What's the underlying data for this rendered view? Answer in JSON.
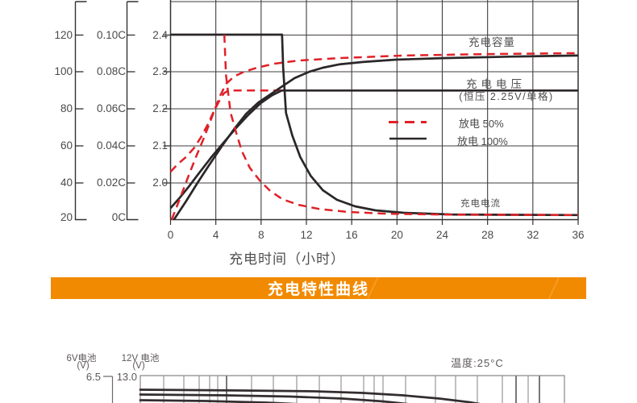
{
  "banner": {
    "title": "充电特性曲线",
    "bg": "#f18a00"
  },
  "chart_data": [
    {
      "type": "line",
      "title": "",
      "xlabel": "充电时间（小时）",
      "x_axis": {
        "range": [
          0,
          36
        ],
        "ticks": [
          "0",
          "4",
          "8",
          "12",
          "16",
          "20",
          "24",
          "28",
          "32",
          "36"
        ]
      },
      "y_axes": [
        {
          "id": "capacity",
          "unit": "%",
          "range": [
            20,
            120
          ],
          "ticks": [
            "120",
            "100",
            "80",
            "60",
            "40",
            "20"
          ]
        },
        {
          "id": "current",
          "unit": "C",
          "range": [
            0,
            0.1
          ],
          "ticks": [
            "0.10C",
            "0.08C",
            "0.06C",
            "0.04C",
            "0.02C",
            "0C"
          ]
        },
        {
          "id": "voltage",
          "unit": "V",
          "range": [
            2.0,
            2.4
          ],
          "ticks": [
            "2.4",
            "2.3",
            "2.2",
            "2.1",
            "2.0"
          ]
        }
      ],
      "annotations": {
        "capacity": "充电容量",
        "voltage": "充电电压",
        "voltage_sub": "(恒压 2.25V/单格)",
        "current": "充电电流"
      },
      "legend": [
        {
          "label": "放电 50%",
          "style": "dashed",
          "color": "#e02128"
        },
        {
          "label": "放电 100%",
          "style": "solid",
          "color": "#2b2728"
        }
      ],
      "series": [
        {
          "id": "voltage-50",
          "name": "充电电压(放电50%)",
          "axis": "voltage",
          "color": "#e02128",
          "style": "dashed",
          "points": [
            [
              0,
              2.03
            ],
            [
              0.6,
              2.05
            ],
            [
              1.35,
              2.07
            ],
            [
              2.06,
              2.094
            ],
            [
              2.7,
              2.124
            ],
            [
              3.27,
              2.157
            ],
            [
              3.77,
              2.19
            ],
            [
              4.27,
              2.22
            ],
            [
              4.7,
              2.242
            ],
            [
              5.1,
              2.25
            ],
            [
              8,
              2.25
            ],
            [
              36,
              2.25
            ]
          ]
        },
        {
          "id": "voltage-100",
          "name": "充电电压(放电100%)",
          "axis": "voltage",
          "color": "#2b2728",
          "style": "solid",
          "points": [
            [
              0,
              1.932
            ],
            [
              0.78,
              1.959
            ],
            [
              1.64,
              1.991
            ],
            [
              2.56,
              2.028
            ],
            [
              3.56,
              2.068
            ],
            [
              4.63,
              2.107
            ],
            [
              5.77,
              2.148
            ],
            [
              6.9,
              2.185
            ],
            [
              7.97,
              2.216
            ],
            [
              8.97,
              2.237
            ],
            [
              9.82,
              2.25
            ],
            [
              12,
              2.25
            ],
            [
              36,
              2.25
            ]
          ]
        },
        {
          "id": "capacity-100",
          "name": "充电容量(放电100%)",
          "axis": "capacity",
          "color": "#2b2728",
          "style": "solid",
          "points": [
            [
              0.3,
              20
            ],
            [
              1.35,
              29.8
            ],
            [
              2.42,
              40.3
            ],
            [
              3.49,
              50.3
            ],
            [
              4.56,
              60
            ],
            [
              5.62,
              69.1
            ],
            [
              6.69,
              77.4
            ],
            [
              7.76,
              83.5
            ],
            [
              8.83,
              87.9
            ],
            [
              9.89,
              92.3
            ],
            [
              10.96,
              96.7
            ],
            [
              12.24,
              100.1
            ],
            [
              13.45,
              102.3
            ],
            [
              14.88,
              104.1
            ],
            [
              17,
              105.4
            ],
            [
              19.9,
              106.7
            ],
            [
              24.1,
              107.5
            ],
            [
              30.5,
              108.4
            ],
            [
              36,
              108.9
            ]
          ]
        },
        {
          "id": "capacity-50",
          "name": "充电容量(放电50%)",
          "axis": "capacity",
          "color": "#e02128",
          "style": "dashed",
          "points": [
            [
              0.1,
              20
            ],
            [
              0.78,
              30.7
            ],
            [
              1.49,
              42.1
            ],
            [
              2.21,
              53.4
            ],
            [
              2.92,
              63.9
            ],
            [
              3.63,
              75.2
            ],
            [
              4.34,
              86.6
            ],
            [
              4.91,
              93.6
            ],
            [
              5.62,
              97.6
            ],
            [
              6.48,
              100.1
            ],
            [
              7.62,
              102.3
            ],
            [
              9.18,
              104.5
            ],
            [
              11.32,
              106.2
            ],
            [
              14.88,
              107.5
            ],
            [
              20.57,
              108.9
            ],
            [
              28,
              109.7
            ],
            [
              36,
              110.2
            ]
          ]
        },
        {
          "id": "current-100",
          "name": "充电电流(放电100%)",
          "axis": "current",
          "color": "#2b2728",
          "style": "solid",
          "points": [
            [
              0,
              0.1
            ],
            [
              9.85,
              0.1
            ],
            [
              9.95,
              0.082
            ],
            [
              10.2,
              0.0577
            ],
            [
              10.75,
              0.0455
            ],
            [
              11.46,
              0.0338
            ],
            [
              12.38,
              0.0237
            ],
            [
              13.45,
              0.0159
            ],
            [
              14.7,
              0.0107
            ],
            [
              16.3,
              0.0072
            ],
            [
              18.1,
              0.005
            ],
            [
              20.6,
              0.0037
            ],
            [
              24.8,
              0.0028
            ],
            [
              30,
              0.0026
            ],
            [
              36,
              0.0025
            ]
          ]
        },
        {
          "id": "current-50",
          "name": "充电电流(放电50%)",
          "axis": "current",
          "color": "#e02128",
          "style": "dashed",
          "points": [
            [
              4.75,
              0.1
            ],
            [
              4.9,
              0.078
            ],
            [
              5.3,
              0.058
            ],
            [
              5.8,
              0.047
            ],
            [
              6.3,
              0.037
            ],
            [
              7.0,
              0.028
            ],
            [
              7.9,
              0.021
            ],
            [
              8.8,
              0.0155
            ],
            [
              9.9,
              0.011
            ],
            [
              11.3,
              0.008
            ],
            [
              13.1,
              0.0058
            ],
            [
              15.6,
              0.0042
            ],
            [
              19.1,
              0.0032
            ],
            [
              24.8,
              0.0027
            ],
            [
              36,
              0.0025
            ]
          ]
        }
      ]
    },
    {
      "type": "line",
      "title": "温度:25°C",
      "y_axes": [
        {
          "id": "battery-6v",
          "label": "6V电池",
          "unit": "(V)",
          "ticks": [
            "6.5"
          ]
        },
        {
          "id": "battery-12v",
          "label": "12V 电池",
          "unit": "(V)",
          "ticks": [
            "13.0"
          ]
        }
      ],
      "series_visible": 3,
      "note_visible_portion": "top edge of discharge chart only"
    }
  ]
}
